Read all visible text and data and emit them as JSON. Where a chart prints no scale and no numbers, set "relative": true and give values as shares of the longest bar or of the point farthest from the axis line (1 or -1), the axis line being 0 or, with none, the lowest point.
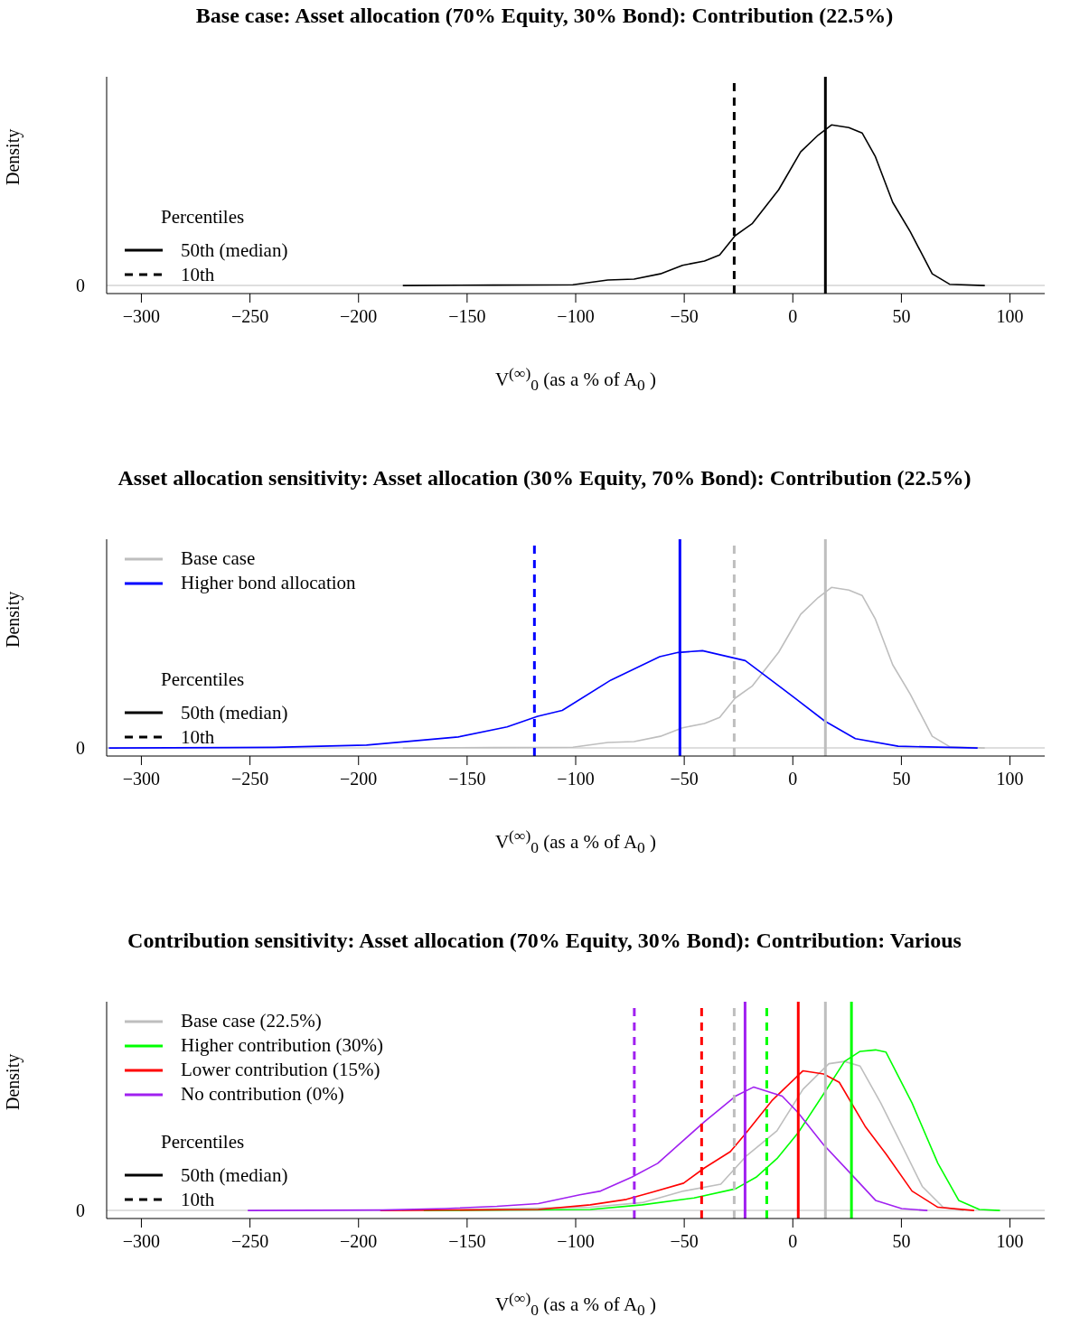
{
  "chart_data": [
    {
      "type": "line",
      "title": "Base case: Asset allocation (70% Equity, 30% Bond): Contribution (22.5%)",
      "xlabel": "V$^{(∞)}$$_{0}$ (as a % of A$_{0}$ )",
      "ylabel": "Density",
      "relative": true,
      "legend": "bottom left",
      "legend_title": "Percentiles",
      "xlim": [
        -316,
        116
      ],
      "xticks": [
        {
          "value": -300,
          "label": "−300"
        },
        {
          "value": -250,
          "label": "−250"
        },
        {
          "value": -200,
          "label": "−200"
        },
        {
          "value": -150,
          "label": "−150"
        },
        {
          "value": -100,
          "label": "−100"
        },
        {
          "value": -50,
          "label": "−50"
        },
        0,
        50,
        100
      ],
      "series": [
        {
          "color": "#000000",
          "x": [
            -179.6,
            -137.6,
            -101.3,
            -85.2,
            -73.1,
            -61,
            -50.8,
            -40.7,
            -33.7,
            -26.6,
            -18.6,
            -6.5,
            3.6,
            11.7,
            17.8,
            25.8,
            31.9,
            37.9,
            46,
            54.1,
            64.2,
            72.2,
            88.4
          ],
          "values": [
            0,
            0.003,
            0.005,
            0.034,
            0.04,
            0.073,
            0.126,
            0.152,
            0.19,
            0.31,
            0.387,
            0.597,
            0.832,
            0.937,
            1,
            0.984,
            0.95,
            0.806,
            0.518,
            0.335,
            0.073,
            0.008,
            0
          ]
        }
      ],
      "ref_lines": [
        {
          "axis": "y",
          "value": 0,
          "color": "#d3d3d3",
          "line_style": "solid",
          "label": "0"
        },
        {
          "axis": "x",
          "value": 15,
          "color": "#000000",
          "line_style": "solid"
        },
        {
          "axis": "x",
          "value": -27,
          "color": "#000000",
          "line_style": "dashed"
        }
      ],
      "annotations": [
        "50th (median)",
        "10th"
      ]
    },
    {
      "type": "line",
      "title": "Asset allocation sensitivity: Asset allocation (30% Equity, 70% Bond): Contribution (22.5%)",
      "xlabel": "V$^{(∞)}$$_{0}$ (as a % of A$_{0}$ )",
      "ylabel": "Density",
      "relative": true,
      "legend": "top left",
      "legend_title": "Percentiles",
      "xlim": [
        -316,
        116
      ],
      "xticks": [
        {
          "value": -300,
          "label": "−300"
        },
        {
          "value": -250,
          "label": "−250"
        },
        {
          "value": -200,
          "label": "−200"
        },
        {
          "value": -150,
          "label": "−150"
        },
        {
          "value": -100,
          "label": "−100"
        },
        {
          "value": -50,
          "label": "−50"
        },
        0,
        50,
        100
      ],
      "series": [
        {
          "name": "Base case",
          "color": "#bebebe",
          "x": [
            -179.6,
            -137.6,
            -101.3,
            -85.2,
            -73.1,
            -61,
            -50.8,
            -40.7,
            -33.7,
            -26.6,
            -18.6,
            -6.5,
            3.6,
            11.7,
            17.8,
            25.8,
            31.9,
            37.9,
            46,
            54.1,
            64.2,
            72.2,
            88.4
          ],
          "values": [
            0,
            0.003,
            0.005,
            0.034,
            0.04,
            0.073,
            0.126,
            0.152,
            0.19,
            0.31,
            0.387,
            0.597,
            0.832,
            0.937,
            1,
            0.984,
            0.95,
            0.806,
            0.518,
            0.335,
            0.073,
            0.008,
            0
          ]
        },
        {
          "name": "Higher bond allocation",
          "color": "#0000ff",
          "x": [
            -315,
            -238.6,
            -196.3,
            -154.1,
            -131.6,
            -117.5,
            -106.2,
            -83.8,
            -61.3,
            -52.8,
            -41.6,
            -21.9,
            0.7,
            14.7,
            28.8,
            48.5,
            85.1
          ],
          "values": [
            0,
            0.004,
            0.018,
            0.069,
            0.131,
            0.197,
            0.234,
            0.423,
            0.569,
            0.595,
            0.606,
            0.544,
            0.314,
            0.168,
            0.058,
            0.011,
            0
          ]
        }
      ],
      "ref_lines": [
        {
          "axis": "y",
          "value": 0,
          "color": "#d3d3d3",
          "line_style": "solid",
          "label": "0"
        },
        {
          "axis": "x",
          "value": 15,
          "color": "#bebebe",
          "line_style": "solid"
        },
        {
          "axis": "x",
          "value": -27,
          "color": "#bebebe",
          "line_style": "dashed"
        },
        {
          "axis": "x",
          "value": -52,
          "color": "#0000ff",
          "line_style": "solid"
        },
        {
          "axis": "x",
          "value": -119,
          "color": "#0000ff",
          "line_style": "dashed"
        }
      ],
      "annotations": [
        "50th (median)",
        "10th"
      ]
    },
    {
      "type": "line",
      "title": "Contribution sensitivity: Asset allocation (70% Equity, 30% Bond): Contribution: Various",
      "xlabel": "V$^{(∞)}$$_{0}$ (as a % of A$_{0}$ )",
      "ylabel": "Density",
      "relative": true,
      "legend": "top left",
      "legend_title": "Percentiles",
      "xlim": [
        -316,
        116
      ],
      "xticks": [
        {
          "value": -300,
          "label": "−300"
        },
        {
          "value": -250,
          "label": "−250"
        },
        {
          "value": -200,
          "label": "−200"
        },
        {
          "value": -150,
          "label": "−150"
        },
        {
          "value": -100,
          "label": "−100"
        },
        {
          "value": -50,
          "label": "−50"
        },
        0,
        50,
        100
      ],
      "series": [
        {
          "name": "Base case (22.5%)",
          "color": "#bebebe",
          "x": [
            -180,
            -93.3,
            -69.4,
            -50.3,
            -33.2,
            -21.6,
            -7.3,
            4.7,
            16.6,
            23.8,
            31,
            40.5,
            50.1,
            59.6,
            69.2,
            78.7
          ],
          "values": [
            0,
            0.02,
            0.049,
            0.121,
            0.164,
            0.337,
            0.496,
            0.755,
            0.914,
            0.928,
            0.899,
            0.669,
            0.409,
            0.15,
            0.02,
            0
          ]
        },
        {
          "name": "Higher contribution (30%)",
          "color": "#00ff00",
          "x": [
            -170,
            -93.3,
            -69.4,
            -45.5,
            -26.4,
            -16.9,
            -7.3,
            2.3,
            14.2,
            23.8,
            31,
            38.1,
            42.9,
            54.9,
            66.8,
            76.4,
            85.9,
            95.4
          ],
          "values": [
            0,
            0.006,
            0.035,
            0.078,
            0.135,
            0.207,
            0.323,
            0.481,
            0.726,
            0.928,
            0.991,
            1,
            0.986,
            0.669,
            0.294,
            0.063,
            0.006,
            0
          ]
        },
        {
          "name": "Lower contribution (15%)",
          "color": "#ff0000",
          "x": [
            -190,
            -117.2,
            -93.3,
            -76.6,
            -64.6,
            -50.3,
            -40.7,
            -28.8,
            -21.6,
            -9.7,
            4.7,
            14.2,
            21.4,
            33.3,
            42.9,
            54.9,
            66.8,
            83.5
          ],
          "values": [
            0,
            0.006,
            0.035,
            0.069,
            0.115,
            0.17,
            0.265,
            0.366,
            0.481,
            0.683,
            0.87,
            0.85,
            0.798,
            0.524,
            0.352,
            0.121,
            0.02,
            0
          ]
        },
        {
          "name": "No contribution (0%)",
          "color": "#a020f0",
          "x": [
            -251,
            -188.9,
            -160.2,
            -136.3,
            -117.2,
            -98.1,
            -88.5,
            -74.2,
            -62.2,
            -40.7,
            -26.4,
            -18,
            -4.9,
            2.3,
            14.2,
            26.2,
            38.1,
            50.1,
            62
          ],
          "values": [
            0,
            0.003,
            0.012,
            0.026,
            0.043,
            0.098,
            0.121,
            0.207,
            0.294,
            0.553,
            0.712,
            0.769,
            0.712,
            0.611,
            0.409,
            0.236,
            0.063,
            0.012,
            0
          ]
        }
      ],
      "ref_lines": [
        {
          "axis": "y",
          "value": 0,
          "color": "#d3d3d3",
          "line_style": "solid",
          "label": "0"
        },
        {
          "axis": "x",
          "value": 15,
          "color": "#bebebe",
          "line_style": "solid"
        },
        {
          "axis": "x",
          "value": -27,
          "color": "#bebebe",
          "line_style": "dashed"
        },
        {
          "axis": "x",
          "value": 27,
          "color": "#00ff00",
          "line_style": "solid"
        },
        {
          "axis": "x",
          "value": -12,
          "color": "#00ff00",
          "line_style": "dashed"
        },
        {
          "axis": "x",
          "value": 2.5,
          "color": "#ff0000",
          "line_style": "solid"
        },
        {
          "axis": "x",
          "value": -42,
          "color": "#ff0000",
          "line_style": "dashed"
        },
        {
          "axis": "x",
          "value": -22,
          "color": "#a020f0",
          "line_style": "solid"
        },
        {
          "axis": "x",
          "value": -73,
          "color": "#a020f0",
          "line_style": "dashed"
        }
      ],
      "annotations": [
        "50th (median)",
        "10th"
      ]
    }
  ]
}
